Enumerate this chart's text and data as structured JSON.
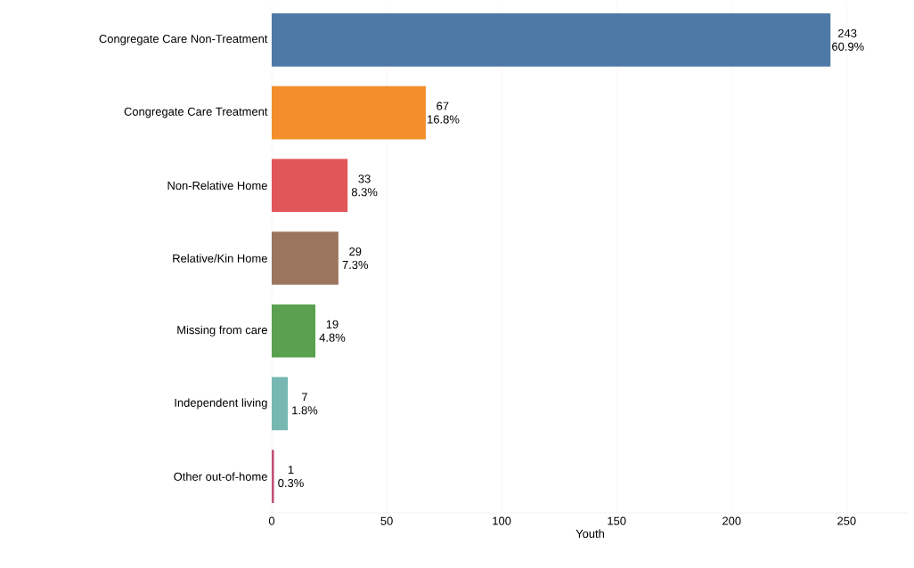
{
  "chart_data": {
    "type": "bar",
    "orientation": "horizontal",
    "xlabel": "Youth",
    "categories": [
      "Congregate Care Non-Treatment",
      "Congregate Care Treatment",
      "Non-Relative Home",
      "Relative/Kin Home",
      "Missing from care",
      "Independent living",
      "Other out-of-home"
    ],
    "values": [
      243,
      67,
      33,
      29,
      19,
      7,
      1
    ],
    "colors": [
      "#4e79a7",
      "#f28e2b",
      "#e15759",
      "#9c755f",
      "#59a14f",
      "#76b7b2",
      "#c0507a"
    ],
    "value_labels": [
      "243 60.9%",
      "67 16.8%",
      "33 8.3%",
      "29 7.3%",
      "19 4.8%",
      "7 1.8%",
      "1 0.3%"
    ],
    "xlim": [
      0,
      277
    ],
    "xticks": [
      0,
      50,
      100,
      150,
      200,
      250
    ],
    "grid": "x"
  }
}
